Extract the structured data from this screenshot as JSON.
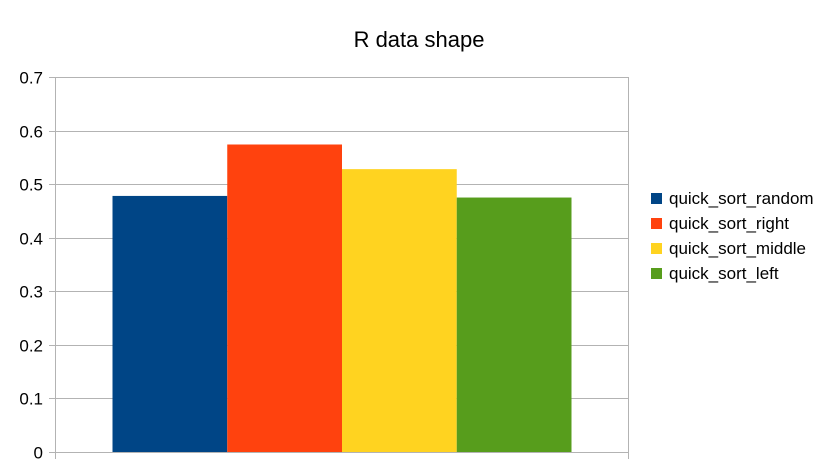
{
  "chart_data": {
    "type": "bar",
    "title": "R data shape",
    "xlabel": "",
    "ylabel": "",
    "ylim": [
      0,
      0.7
    ],
    "yticks": [
      0,
      0.1,
      0.2,
      0.3,
      0.4,
      0.5,
      0.6,
      0.7
    ],
    "grid": true,
    "legend_position": "right",
    "categories": [
      ""
    ],
    "series": [
      {
        "name": "quick_sort_random",
        "values": [
          0.478
        ],
        "color": "#004586"
      },
      {
        "name": "quick_sort_right",
        "values": [
          0.574
        ],
        "color": "#ff420e"
      },
      {
        "name": "quick_sort_middle",
        "values": [
          0.528
        ],
        "color": "#ffd320"
      },
      {
        "name": "quick_sort_left",
        "values": [
          0.475
        ],
        "color": "#579d1c"
      }
    ]
  }
}
